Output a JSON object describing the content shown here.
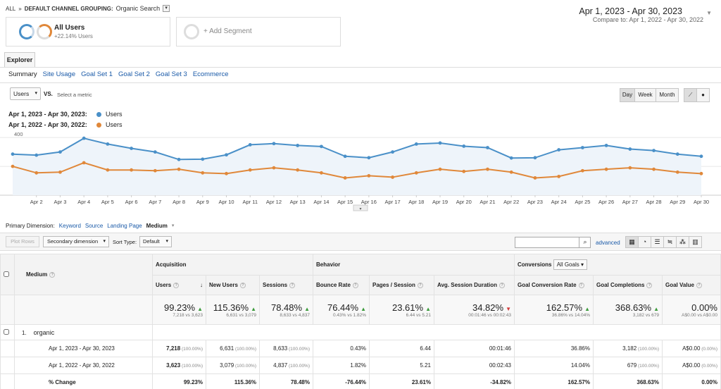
{
  "breadcrumb": {
    "root": "ALL",
    "sep": "»",
    "dimension": "DEFAULT CHANNEL GROUPING:",
    "value": "Organic Search"
  },
  "segments": {
    "all_users": {
      "title": "All Users",
      "subtitle": "+22.14% Users"
    },
    "add_segment": "+ Add Segment"
  },
  "date_range": {
    "current": "Apr 1, 2023 - Apr 30, 2023",
    "compare_prefix": "Compare to:",
    "compare": "Apr 1, 2022 - Apr 30, 2022"
  },
  "tabs": {
    "explorer": "Explorer",
    "subtabs": [
      "Summary",
      "Site Usage",
      "Goal Set 1",
      "Goal Set 2",
      "Goal Set 3",
      "Ecommerce"
    ]
  },
  "chart_controls": {
    "metric": "Users",
    "vs": "VS.",
    "select_metric": "Select a metric",
    "day": "Day",
    "week": "Week",
    "month": "Month"
  },
  "legend": [
    {
      "range": "Apr 1, 2023 - Apr 30, 2023:",
      "metric": "Users",
      "color": "#4a90c8"
    },
    {
      "range": "Apr 1, 2022 - Apr 30, 2022:",
      "metric": "Users",
      "color": "#e0883a"
    }
  ],
  "chart_data": {
    "type": "line",
    "x": [
      "Apr 1",
      "Apr 2",
      "Apr 3",
      "Apr 4",
      "Apr 5",
      "Apr 6",
      "Apr 7",
      "Apr 8",
      "Apr 9",
      "Apr 10",
      "Apr 11",
      "Apr 12",
      "Apr 13",
      "Apr 14",
      "Apr 15",
      "Apr 16",
      "Apr 17",
      "Apr 18",
      "Apr 19",
      "Apr 20",
      "Apr 21",
      "Apr 22",
      "Apr 23",
      "Apr 24",
      "Apr 25",
      "Apr 26",
      "Apr 27",
      "Apr 28",
      "Apr 29",
      "Apr 30"
    ],
    "tick_labels": [
      "Apr 2",
      "Apr 3",
      "Apr 4",
      "Apr 5",
      "Apr 6",
      "Apr 7",
      "Apr 8",
      "Apr 9",
      "Apr 10",
      "Apr 11",
      "Apr 12",
      "Apr 13",
      "Apr 14",
      "Apr 15",
      "Apr 16",
      "Apr 17",
      "Apr 18",
      "Apr 19",
      "Apr 20",
      "Apr 21",
      "Apr 22",
      "Apr 23",
      "Apr 24",
      "Apr 25",
      "Apr 26",
      "Apr 27",
      "Apr 28",
      "Apr 29",
      "Apr 30"
    ],
    "y_ticks": [
      200,
      400
    ],
    "ylim": [
      0,
      440
    ],
    "series": [
      {
        "name": "Users",
        "values": [
          285,
          278,
          300,
          395,
          355,
          325,
          300,
          248,
          250,
          280,
          350,
          358,
          345,
          338,
          270,
          260,
          300,
          355,
          362,
          340,
          330,
          258,
          260,
          315,
          330,
          345,
          320,
          310,
          285,
          270
        ]
      },
      {
        "name": "Users",
        "values": [
          200,
          155,
          160,
          225,
          175,
          175,
          170,
          180,
          155,
          150,
          175,
          190,
          175,
          155,
          120,
          135,
          125,
          155,
          180,
          165,
          180,
          160,
          120,
          130,
          170,
          180,
          190,
          180,
          160,
          150
        ]
      }
    ]
  },
  "primary_dimension": {
    "label": "Primary Dimension:",
    "options": [
      "Keyword",
      "Source",
      "Landing Page",
      "Medium"
    ]
  },
  "table_controls": {
    "plot_rows": "Plot Rows",
    "secondary_dimension": "Secondary dimension",
    "sort_type_label": "Sort Type:",
    "sort_type": "Default",
    "advanced": "advanced"
  },
  "table": {
    "groups": {
      "acquisition": "Acquisition",
      "behavior": "Behavior",
      "conversions": "Conversions",
      "all_goals": "All Goals"
    },
    "dimension_header": "Medium",
    "columns": [
      "Users",
      "New Users",
      "Sessions",
      "Bounce Rate",
      "Pages / Session",
      "Avg. Session Duration",
      "Goal Conversion Rate",
      "Goal Completions",
      "Goal Value"
    ],
    "summary": [
      {
        "change": "99.23%",
        "detail": "7,218 vs 3,623",
        "dir": "up"
      },
      {
        "change": "115.36%",
        "detail": "6,631 vs 3,079",
        "dir": "up"
      },
      {
        "change": "78.48%",
        "detail": "8,633 vs 4,837",
        "dir": "up"
      },
      {
        "change": "76.44%",
        "detail": "0.43% vs 1.82%",
        "dir": "up"
      },
      {
        "change": "23.61%",
        "detail": "6.44 vs 5.21",
        "dir": "up"
      },
      {
        "change": "34.82%",
        "detail": "00:01:46 vs 00:02:43",
        "dir": "down"
      },
      {
        "change": "162.57%",
        "detail": "36.86% vs 14.04%",
        "dir": "up"
      },
      {
        "change": "368.63%",
        "detail": "3,182 vs 679",
        "dir": "up"
      },
      {
        "change": "0.00%",
        "detail": "A$0.00 vs A$0.00",
        "dir": "none"
      }
    ],
    "row_index": "1.",
    "row_name": "organic",
    "rows": [
      {
        "label": "Apr 1, 2023 - Apr 30, 2023",
        "users": "7,218",
        "users_pct": "(100.00%)",
        "new_users": "6,631",
        "new_users_pct": "(100.00%)",
        "sessions": "8,633",
        "sessions_pct": "(100.00%)",
        "bounce": "0.43%",
        "pages": "6.44",
        "duration": "00:01:46",
        "gcr": "36.86%",
        "goals": "3,182",
        "goals_pct": "(100.00%)",
        "value": "A$0.00",
        "value_pct": "(0.00%)"
      },
      {
        "label": "Apr 1, 2022 - Apr 30, 2022",
        "users": "3,623",
        "users_pct": "(100.00%)",
        "new_users": "3,079",
        "new_users_pct": "(100.00%)",
        "sessions": "4,837",
        "sessions_pct": "(100.00%)",
        "bounce": "1.82%",
        "pages": "5.21",
        "duration": "00:02:43",
        "gcr": "14.04%",
        "goals": "679",
        "goals_pct": "(100.00%)",
        "value": "A$0.00",
        "value_pct": "(0.00%)"
      },
      {
        "label": "% Change",
        "users": "99.23%",
        "new_users": "115.36%",
        "sessions": "78.48%",
        "bounce": "-76.44%",
        "pages": "23.61%",
        "duration": "-34.82%",
        "gcr": "162.57%",
        "goals": "368.63%",
        "value": "0.00%"
      }
    ]
  }
}
